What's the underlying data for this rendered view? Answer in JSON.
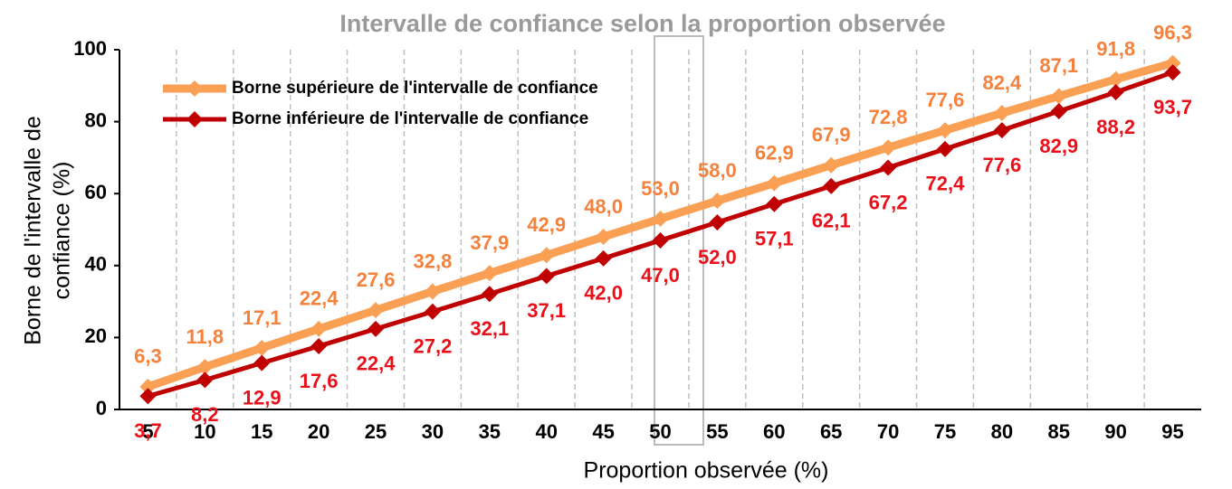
{
  "chart_data": {
    "type": "line",
    "title": "Intervalle de confiance selon la proportion observée",
    "xlabel": "Proportion observée (%)",
    "ylabel": [
      "Borne de l'intervalle de",
      "confiance (%)"
    ],
    "categories": [
      5,
      10,
      15,
      20,
      25,
      30,
      35,
      40,
      45,
      50,
      55,
      60,
      65,
      70,
      75,
      80,
      85,
      90,
      95
    ],
    "series": [
      {
        "name": "Borne supérieure de l'intervalle de confiance",
        "color": "#f9a055",
        "label_color": "#f4823c",
        "position": "above",
        "values": [
          6.3,
          11.8,
          17.1,
          22.4,
          27.6,
          32.8,
          37.9,
          42.9,
          48.0,
          53.0,
          58.0,
          62.9,
          67.9,
          72.8,
          77.6,
          82.4,
          87.1,
          91.8,
          96.3
        ],
        "value_labels": [
          "6,3",
          "11,8",
          "17,1",
          "22,4",
          "27,6",
          "32,8",
          "37,9",
          "42,9",
          "48,0",
          "53,0",
          "58,0",
          "62,9",
          "67,9",
          "72,8",
          "77,6",
          "82,4",
          "87,1",
          "91,8",
          "96,3"
        ]
      },
      {
        "name": "Borne inférieure de l'intervalle de confiance",
        "color": "#c00000",
        "label_color": "#e8111a",
        "position": "below",
        "values": [
          3.7,
          8.2,
          12.9,
          17.6,
          22.4,
          27.2,
          32.1,
          37.1,
          42.0,
          47.0,
          52.0,
          57.1,
          62.1,
          67.2,
          72.4,
          77.6,
          82.9,
          88.2,
          93.7
        ],
        "value_labels": [
          "3,7",
          "8,2",
          "12,9",
          "17,6",
          "22,4",
          "27,2",
          "32,1",
          "37,1",
          "42,0",
          "47,0",
          "52,0",
          "57,1",
          "62,1",
          "67,2",
          "72,4",
          "77,6",
          "82,9",
          "88,2",
          "93,7"
        ]
      }
    ],
    "ylim": [
      0,
      100
    ],
    "yticks": [
      0,
      20,
      40,
      60,
      80,
      100
    ],
    "grid": "vertical",
    "legend": "upper left"
  }
}
